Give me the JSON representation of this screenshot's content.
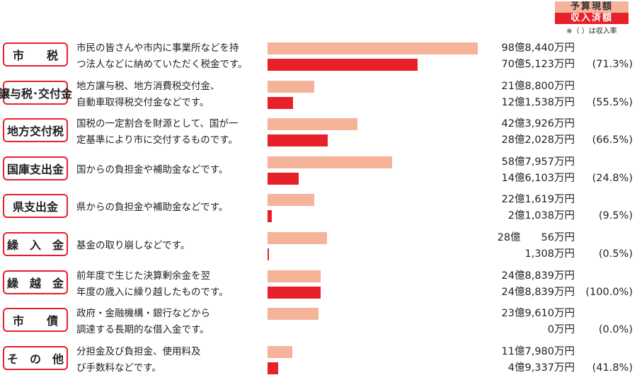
{
  "legend": {
    "budget_label": "予算現額",
    "income_label": "収入済額",
    "note": "※（ ）は収入率",
    "colors": {
      "budget": "#f5b39a",
      "income": "#e8202a"
    }
  },
  "chart_data": {
    "type": "bar",
    "orientation": "horizontal",
    "unit": "万円",
    "categories": [
      "市　　税",
      "譲与税･交付金",
      "地方交付税",
      "国庫支出金",
      "県支出金",
      "繰　入　金",
      "繰　越　金",
      "市　　債",
      "そ　の　他"
    ],
    "series": [
      {
        "name": "予算現額",
        "values": [
          988440,
          218800,
          423926,
          587957,
          221619,
          280056,
          248839,
          239610,
          117980
        ]
      },
      {
        "name": "収入済額",
        "values": [
          705123,
          121538,
          282028,
          146103,
          21038,
          1308,
          248839,
          0,
          49337
        ]
      }
    ],
    "rows": [
      {
        "label": "市　　税",
        "desc": [
          "市民の皆さんや市内に事業所などを持",
          "つ法人などに納めていただく税金です。"
        ],
        "budget_text": "98億8,440万円",
        "income_text": "70億5,123万円",
        "rate_text": "(71.3%)"
      },
      {
        "label": "譲与税･交付金",
        "desc": [
          "地方譲与税、地方消費税交付金、",
          "自動車取得税交付金などです。"
        ],
        "budget_text": "21億8,800万円",
        "income_text": "12億1,538万円",
        "rate_text": "(55.5%)"
      },
      {
        "label": "地方交付税",
        "desc": [
          "国税の一定割合を財源として、国が一",
          "定基準により市に交付するものです。"
        ],
        "budget_text": "42億3,926万円",
        "income_text": "28億2,028万円",
        "rate_text": "(66.5%)"
      },
      {
        "label": "国庫支出金",
        "desc": [
          "国からの負担金や補助金などです。"
        ],
        "budget_text": "58億7,957万円",
        "income_text": "14億6,103万円",
        "rate_text": "(24.8%)"
      },
      {
        "label": "県支出金",
        "desc": [
          "県からの負担金や補助金などです。"
        ],
        "budget_text": "22億1,619万円",
        "income_text": "2億1,038万円",
        "rate_text": "(9.5%)"
      },
      {
        "label": "繰　入　金",
        "desc": [
          "基金の取り崩しなどです。"
        ],
        "budget_text": "28億　　56万円",
        "income_text": "1,308万円",
        "rate_text": "(0.5%)"
      },
      {
        "label": "繰　越　金",
        "desc": [
          "前年度で生じた決算剰余金を翌",
          "年度の歳入に繰り越したものです。"
        ],
        "budget_text": "24億8,839万円",
        "income_text": "24億8,839万円",
        "rate_text": "(100.0%)"
      },
      {
        "label": "市　　債",
        "desc": [
          "政府・金融機構・銀行などから",
          "調達する長期的な借入金です。"
        ],
        "budget_text": "23億9,610万円",
        "income_text": "0万円",
        "rate_text": "(0.0%)"
      },
      {
        "label": "そ　の　他",
        "desc": [
          "分担金及び負担金、使用料及",
          "び手数料などです。"
        ],
        "budget_text": "11億7,980万円",
        "income_text": "4億9,337万円",
        "rate_text": "(41.8%)"
      }
    ]
  }
}
